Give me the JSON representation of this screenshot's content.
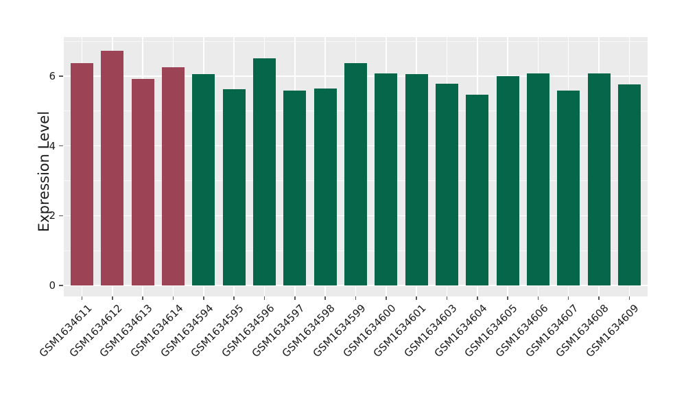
{
  "chart_data": {
    "type": "bar",
    "title": "",
    "xlabel": "",
    "ylabel": "Expression Level",
    "ylim": [
      0,
      7.12
    ],
    "yticks": [
      0,
      2,
      4,
      6
    ],
    "yticks_minor": [
      1,
      3,
      5,
      7
    ],
    "grid": "white major and minor horizontal lines plus vertical line at each category, on gray panel",
    "legend_position": "none",
    "categories": [
      "GSM1634611",
      "GSM1634612",
      "GSM1634613",
      "GSM1634614",
      "GSM1634594",
      "GSM1634595",
      "GSM1634596",
      "GSM1634597",
      "GSM1634598",
      "GSM1634599",
      "GSM1634600",
      "GSM1634601",
      "GSM1634603",
      "GSM1634604",
      "GSM1634605",
      "GSM1634606",
      "GSM1634607",
      "GSM1634608",
      "GSM1634609"
    ],
    "values": [
      6.37,
      6.73,
      5.93,
      6.26,
      6.06,
      5.62,
      6.52,
      5.59,
      5.64,
      6.37,
      6.08,
      6.06,
      5.78,
      5.47,
      6.0,
      6.07,
      5.58,
      6.08,
      5.77
    ],
    "bar_groups": [
      "group1",
      "group1",
      "group1",
      "group1",
      "group2",
      "group2",
      "group2",
      "group2",
      "group2",
      "group2",
      "group2",
      "group2",
      "group2",
      "group2",
      "group2",
      "group2",
      "group2",
      "group2",
      "group2"
    ],
    "group_colors": {
      "group1": "#9c4355",
      "group2": "#066649"
    }
  },
  "style": {
    "panel_bg": "#ebebeb",
    "grid_color": "#ffffff",
    "tick_color": "#555555",
    "text_color": "#1a1a1a",
    "background": "#ffffff"
  }
}
